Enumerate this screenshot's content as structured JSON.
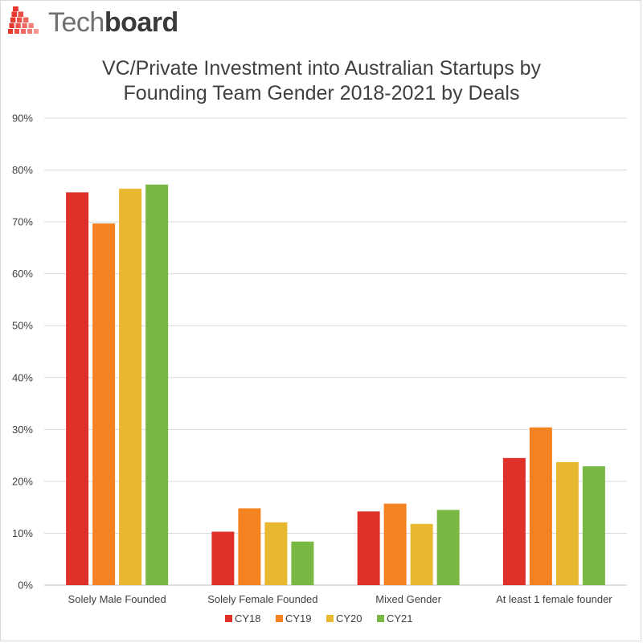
{
  "brand": {
    "name_light": "Tech",
    "name_bold": "board",
    "accent": "#e8372c"
  },
  "chart_data": {
    "type": "bar",
    "title_line1": "VC/Private Investment into Australian Startups by",
    "title_line2": "Founding Team Gender 2018-2021 by Deals",
    "categories": [
      "Solely Male Founded",
      "Solely Female Founded",
      "Mixed Gender",
      "At least 1 female founder"
    ],
    "series": [
      {
        "name": "CY18",
        "color": "#e0302a",
        "values": [
          75.7,
          10.3,
          14.2,
          24.5
        ]
      },
      {
        "name": "CY19",
        "color": "#f58220",
        "values": [
          69.7,
          14.8,
          15.7,
          30.4
        ]
      },
      {
        "name": "CY20",
        "color": "#e8b830",
        "values": [
          76.4,
          12.1,
          11.8,
          23.7
        ]
      },
      {
        "name": "CY21",
        "color": "#7ab844",
        "values": [
          77.2,
          8.4,
          14.5,
          22.9
        ]
      }
    ],
    "ylim": [
      0,
      90
    ],
    "yticks": [
      0,
      10,
      20,
      30,
      40,
      50,
      60,
      70,
      80,
      90
    ],
    "ytick_labels": [
      "0%",
      "10%",
      "20%",
      "30%",
      "40%",
      "50%",
      "60%",
      "70%",
      "80%",
      "90%"
    ],
    "grid": true,
    "legend": "bottom"
  }
}
